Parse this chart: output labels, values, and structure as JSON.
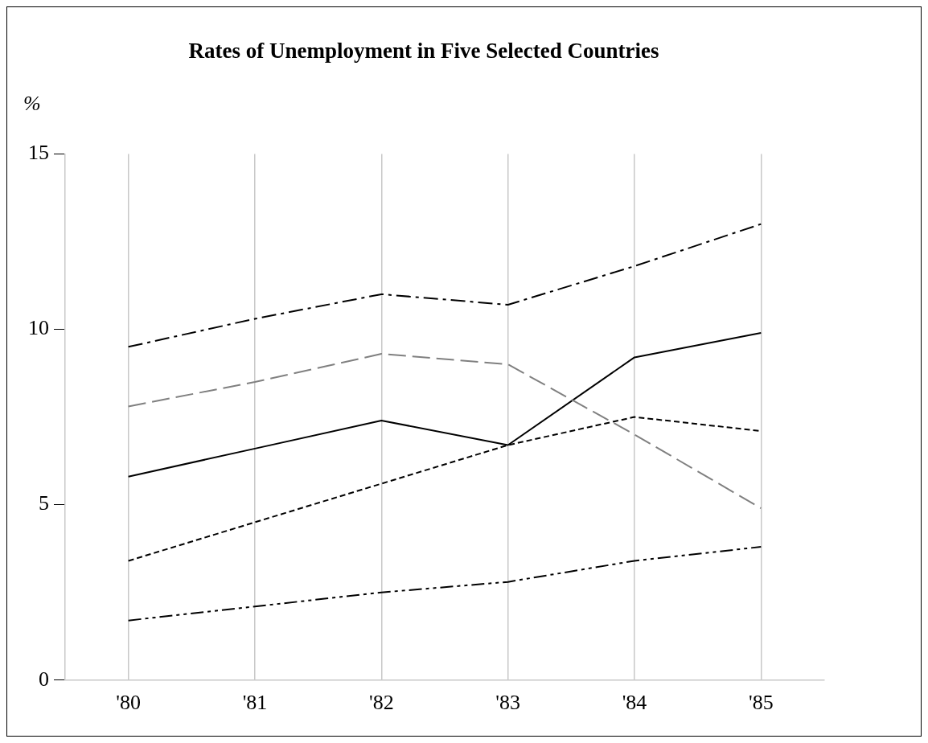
{
  "chart_data": {
    "type": "line",
    "title": "Rates of Unemployment in Five Selected Countries",
    "ylabel": "%",
    "categories": [
      "'80",
      "'81",
      "'82",
      "'83",
      "'84",
      "'85"
    ],
    "ylim": [
      0,
      15
    ],
    "yticks": [
      0,
      5,
      10,
      15
    ],
    "grid": "x",
    "legend": false,
    "marker": "none",
    "series": [
      {
        "color": "#000000",
        "line_style": "dashdot",
        "values": [
          9.5,
          10.3,
          11.0,
          10.7,
          11.8,
          13.0
        ]
      },
      {
        "color": "#808080",
        "line_style": "dashed",
        "values": [
          7.8,
          8.5,
          9.3,
          9.0,
          7.0,
          4.9
        ]
      },
      {
        "color": "#000000",
        "line_style": "solid",
        "values": [
          5.8,
          6.6,
          7.4,
          6.7,
          9.2,
          9.9
        ]
      },
      {
        "color": "#000000",
        "line_style": "dotted",
        "values": [
          3.4,
          4.5,
          5.6,
          6.7,
          7.5,
          7.1
        ]
      },
      {
        "color": "#000000",
        "line_style": "dashdotdot",
        "values": [
          1.7,
          2.1,
          2.5,
          2.8,
          3.4,
          3.8
        ]
      }
    ]
  }
}
